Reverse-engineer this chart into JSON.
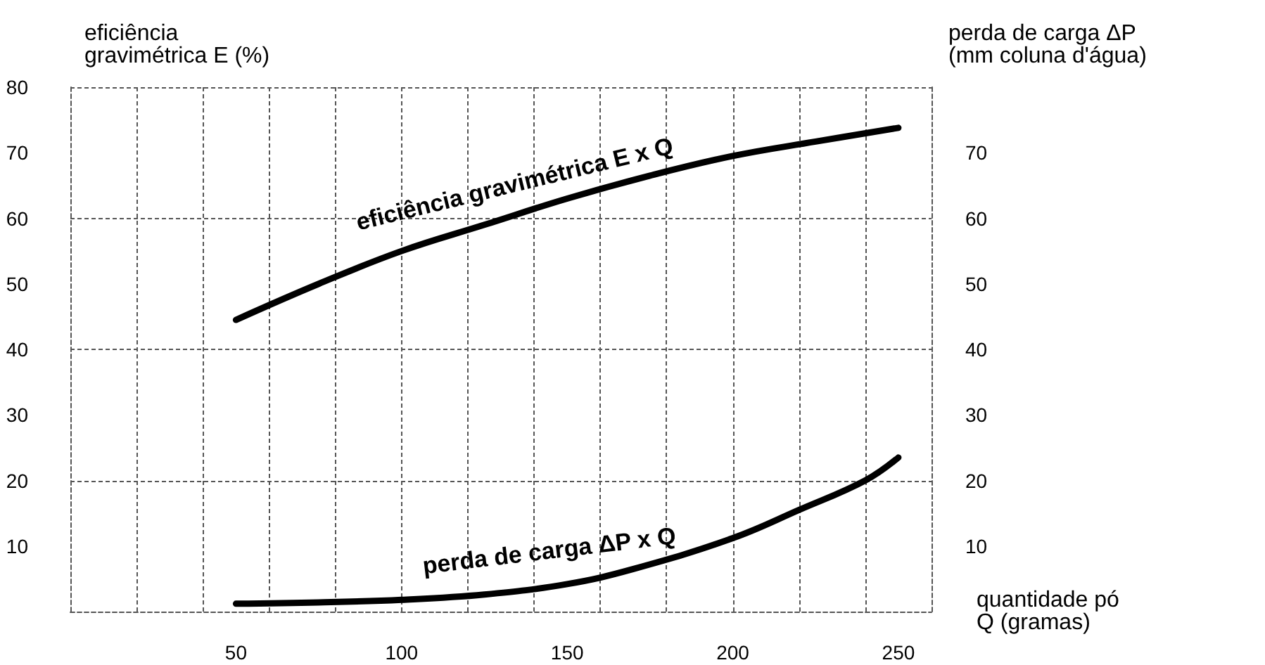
{
  "chart_data": {
    "type": "line",
    "ylabel": "eficiência\ngravimétrica E (%)",
    "y2label": "perda de carga ΔP\n(mm coluna d'água)",
    "xlabel": "quantidade pó\nQ (gramas)",
    "xlim": [
      0,
      260
    ],
    "xticks": [
      {
        "value": 20,
        "label": null
      },
      {
        "value": 40,
        "label": null
      },
      50,
      {
        "value": 60,
        "label": null
      },
      {
        "value": 80,
        "label": null
      },
      100,
      {
        "value": 120,
        "label": null
      },
      {
        "value": 140,
        "label": null
      },
      150,
      {
        "value": 160,
        "label": null
      },
      {
        "value": 180,
        "label": null
      },
      200,
      {
        "value": 220,
        "label": null
      },
      {
        "value": 240,
        "label": null
      },
      250
    ],
    "ylim": [
      0,
      80
    ],
    "yticks": [
      10,
      20,
      30,
      40,
      50,
      60,
      70,
      80
    ],
    "y2lim": [
      0,
      80
    ],
    "y2ticks": [
      10,
      20,
      30,
      40,
      50,
      60,
      70
    ],
    "grid": true,
    "marker": "none",
    "line_style": "solid",
    "series": [
      {
        "color": "#000000",
        "x": [
          50,
          75,
          100,
          125,
          150,
          175,
          200,
          225,
          250
        ],
        "values": [
          44.5,
          50,
          55,
          59,
          63,
          66.5,
          69.5,
          71.7,
          73.8
        ]
      },
      {
        "color": "#000000",
        "x": [
          50,
          75,
          100,
          125,
          150,
          170,
          200,
          220,
          240,
          250
        ],
        "values": [
          1.2,
          1.4,
          1.8,
          2.6,
          4.2,
          6.5,
          11.2,
          15.5,
          20,
          23.5
        ]
      }
    ],
    "annotations": [
      {
        "text": "eficiência gravimétrica E x Q",
        "x": 135,
        "y": 60
      },
      {
        "text": "perda de carga ΔP x Q",
        "x": 145,
        "y": 4
      }
    ]
  }
}
